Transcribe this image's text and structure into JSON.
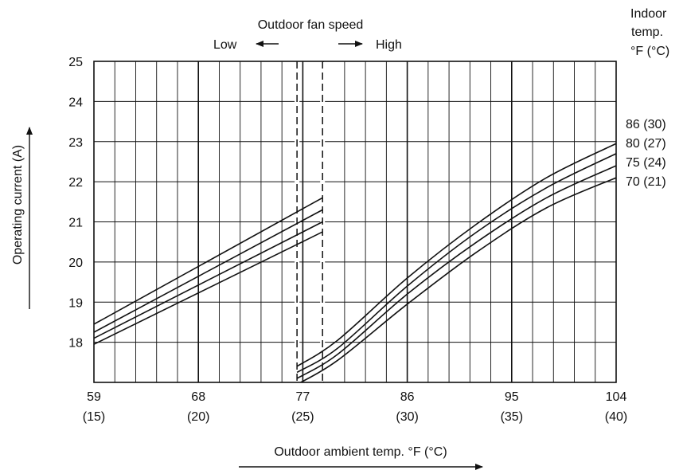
{
  "chart_data": {
    "type": "line",
    "title": "",
    "xlabel": "Outdoor ambient temp. °F (°C)",
    "ylabel": "Operating current (A)",
    "xlim": [
      59,
      104
    ],
    "ylim": [
      17,
      25
    ],
    "grid": true,
    "x_ticks": [
      {
        "value": 59,
        "label": "59",
        "sub": "(15)"
      },
      {
        "value": 68,
        "label": "68",
        "sub": "(20)"
      },
      {
        "value": 77,
        "label": "77",
        "sub": "(25)"
      },
      {
        "value": 86,
        "label": "86",
        "sub": "(30)"
      },
      {
        "value": 95,
        "label": "95",
        "sub": "(35)"
      },
      {
        "value": 104,
        "label": "104",
        "sub": "(40)"
      }
    ],
    "y_ticks": [
      {
        "value": 18,
        "label": "18"
      },
      {
        "value": 19,
        "label": "19"
      },
      {
        "value": 20,
        "label": "20"
      },
      {
        "value": 21,
        "label": "21"
      },
      {
        "value": 22,
        "label": "22"
      },
      {
        "value": 23,
        "label": "23"
      },
      {
        "value": 24,
        "label": "24"
      },
      {
        "value": 25,
        "label": "25"
      }
    ],
    "fan_speed": {
      "title": "Outdoor fan speed",
      "low_label": "Low",
      "high_label": "High",
      "dashed_x": [
        76.5,
        78.7
      ]
    },
    "legend_title": "Indoor temp. °F (°C)",
    "legend_title_lines": [
      "Indoor",
      "temp.",
      "°F (°C)"
    ],
    "legend_placement": "right",
    "series": [
      {
        "name": "86 (30)",
        "low_speed": {
          "x": [
            59,
            78.7
          ],
          "y": [
            18.45,
            21.6
          ]
        },
        "high_speed": {
          "x": [
            76.5,
            80,
            86,
            92,
            98,
            104
          ],
          "y": [
            17.4,
            18.05,
            19.6,
            20.95,
            22.1,
            22.95
          ]
        }
      },
      {
        "name": "80 (27)",
        "low_speed": {
          "x": [
            59,
            78.7
          ],
          "y": [
            18.25,
            21.3
          ]
        },
        "high_speed": {
          "x": [
            76.5,
            80,
            86,
            92,
            98,
            104
          ],
          "y": [
            17.25,
            17.85,
            19.4,
            20.75,
            21.85,
            22.7
          ]
        }
      },
      {
        "name": "75 (24)",
        "low_speed": {
          "x": [
            59,
            78.7
          ],
          "y": [
            18.1,
            21.0
          ]
        },
        "high_speed": {
          "x": [
            76.5,
            80,
            86,
            92,
            98,
            104
          ],
          "y": [
            17.1,
            17.7,
            19.2,
            20.5,
            21.6,
            22.4
          ]
        }
      },
      {
        "name": "70 (21)",
        "low_speed": {
          "x": [
            59,
            78.7
          ],
          "y": [
            17.95,
            20.75
          ]
        },
        "high_speed": {
          "x": [
            76.5,
            80,
            86,
            92,
            98,
            104
          ],
          "y": [
            16.95,
            17.55,
            18.95,
            20.25,
            21.35,
            22.1
          ]
        }
      }
    ]
  },
  "colors": {
    "ink": "#111111",
    "background": "#ffffff"
  }
}
